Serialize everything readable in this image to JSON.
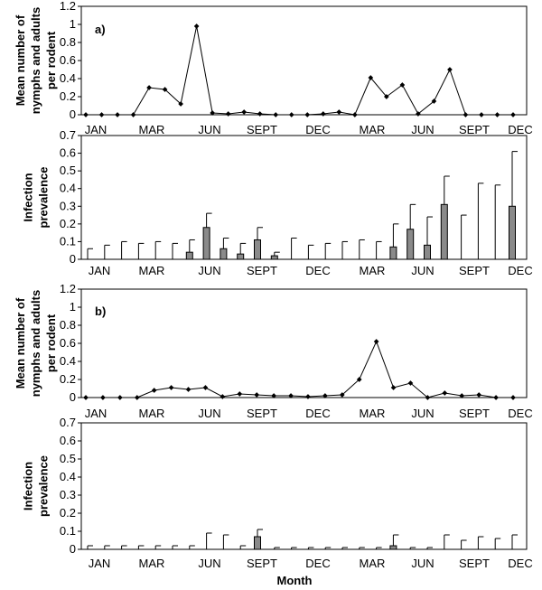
{
  "x_title": "Month",
  "chart_data": [
    {
      "id": "a_top",
      "type": "line",
      "panel_label": "a)",
      "ylabel": [
        "Mean number of",
        "nymphs and adults",
        "per rodent"
      ],
      "ylim": [
        0,
        1.2
      ],
      "yticks": [
        "0",
        "0.2",
        "0.4",
        "0.6",
        "0.8",
        "1",
        "1.2"
      ],
      "xticks": [
        "JAN",
        "MAR",
        "JUN",
        "SEPT",
        "DEC",
        "MAR",
        "JUN",
        "SEPT",
        "DEC"
      ],
      "values": [
        0,
        0,
        0,
        0,
        0.3,
        0.28,
        0.12,
        0.98,
        0.02,
        0.01,
        0.03,
        0.01,
        0,
        0,
        0,
        0.01,
        0.03,
        0,
        0.41,
        0.2,
        0.33,
        0.01,
        0.15,
        0.5,
        0,
        0,
        0,
        0
      ]
    },
    {
      "id": "a_bottom",
      "type": "bar",
      "ylabel": [
        "Infection",
        "prevalence"
      ],
      "ylim": [
        0,
        0.7
      ],
      "yticks": [
        "0",
        "0.1",
        "0.2",
        "0.3",
        "0.4",
        "0.5",
        "0.6",
        "0.7"
      ],
      "xticks": [
        "JAN",
        "MAR",
        "JUN",
        "SEPT",
        "DEC",
        "MAR",
        "JUN",
        "SEPT",
        "DEC"
      ],
      "bars": [
        0,
        0,
        0,
        0,
        0,
        0,
        0.04,
        0.18,
        0.06,
        0.03,
        0.11,
        0.02,
        0,
        0,
        0,
        0,
        0,
        0,
        0.07,
        0.17,
        0.08,
        0.31,
        0,
        0,
        0,
        0.3
      ],
      "errors": [
        0.06,
        0.08,
        0.1,
        0.09,
        0.1,
        0.09,
        0.11,
        0.26,
        0.12,
        0.09,
        0.18,
        0.04,
        0.12,
        0.08,
        0.09,
        0.1,
        0.11,
        0.1,
        0.2,
        0.31,
        0.24,
        0.47,
        0.25,
        0.43,
        0.42,
        0.61
      ]
    },
    {
      "id": "b_top",
      "type": "line",
      "panel_label": "b)",
      "ylabel": [
        "Mean number of",
        "nymphs and adults",
        "per rodent"
      ],
      "ylim": [
        0,
        1.2
      ],
      "yticks": [
        "0",
        "0.2",
        "0.4",
        "0.6",
        "0.8",
        "1",
        "1.2"
      ],
      "xticks": [
        "JAN",
        "MAR",
        "JUN",
        "SEPT",
        "DEC",
        "MAR",
        "JUN",
        "SEPT",
        "DEC"
      ],
      "values": [
        0,
        0,
        0,
        0,
        0.08,
        0.11,
        0.09,
        0.11,
        0.01,
        0.04,
        0.03,
        0.02,
        0.02,
        0.01,
        0.02,
        0.03,
        0.2,
        0.62,
        0.11,
        0.16,
        0,
        0.05,
        0.02,
        0.03,
        0,
        0
      ]
    },
    {
      "id": "b_bottom",
      "type": "bar",
      "ylabel": [
        "Infection",
        "prevalence"
      ],
      "ylim": [
        0,
        0.7
      ],
      "yticks": [
        "0",
        "0.1",
        "0.2",
        "0.3",
        "0.4",
        "0.5",
        "0.6",
        "0.7"
      ],
      "xticks": [
        "JAN",
        "MAR",
        "JUN",
        "SEPT",
        "DEC",
        "MAR",
        "JUN",
        "SEPT",
        "DEC"
      ],
      "bars": [
        0,
        0,
        0,
        0,
        0,
        0,
        0,
        0,
        0,
        0,
        0.07,
        0,
        0,
        0,
        0,
        0,
        0,
        0,
        0.02,
        0,
        0,
        0,
        0,
        0,
        0,
        0
      ],
      "errors": [
        0.02,
        0.02,
        0.02,
        0.02,
        0.02,
        0.02,
        0.02,
        0.09,
        0.08,
        0.02,
        0.11,
        0.01,
        0.01,
        0.01,
        0.01,
        0.01,
        0.01,
        0.01,
        0.08,
        0.01,
        0.01,
        0.08,
        0.05,
        0.07,
        0.06,
        0.08
      ]
    }
  ]
}
